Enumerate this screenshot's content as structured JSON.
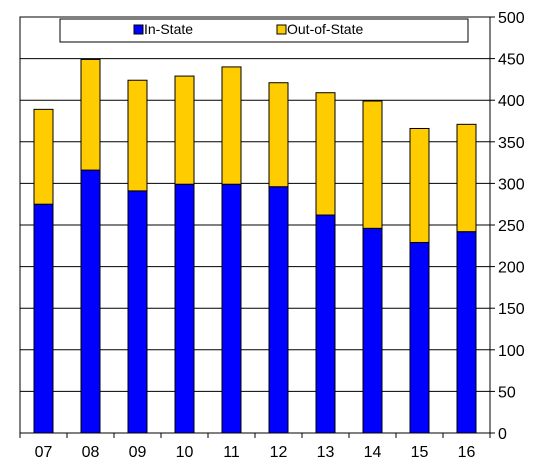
{
  "chart_data": {
    "type": "bar",
    "stacked": true,
    "categories": [
      "07",
      "08",
      "09",
      "10",
      "11",
      "12",
      "13",
      "14",
      "15",
      "16"
    ],
    "series": [
      {
        "name": "In-State",
        "color": "#0000ff",
        "values": [
          275,
          316,
          291,
          299,
          299,
          296,
          262,
          246,
          229,
          242
        ]
      },
      {
        "name": "Out-of-State",
        "color": "#ffcc00",
        "values": [
          114,
          133,
          133,
          130,
          141,
          125,
          147,
          153,
          137,
          129
        ]
      }
    ],
    "ylim": [
      0,
      500
    ],
    "yticks": [
      0,
      50,
      100,
      150,
      200,
      250,
      300,
      350,
      400,
      450,
      500
    ],
    "y_axis_position": "right",
    "grid": true,
    "legend_position": "top",
    "title": "",
    "xlabel": "",
    "ylabel": ""
  }
}
